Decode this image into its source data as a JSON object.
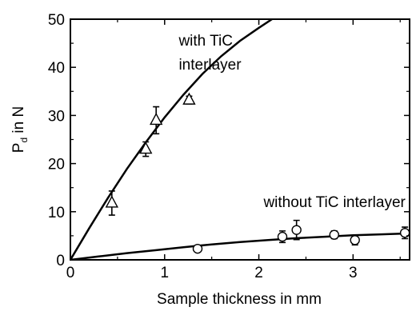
{
  "chart_data": {
    "type": "scatter",
    "xlabel": "Sample thickness in mm",
    "ylabel": "P",
    "ylabel_sub": "d",
    "ylabel_suffix": " in N",
    "xlim": [
      0,
      3.6
    ],
    "ylim": [
      0,
      50
    ],
    "xticks": [
      0,
      1,
      2,
      3
    ],
    "yticks": [
      0,
      10,
      20,
      30,
      40,
      50
    ],
    "grid": false,
    "annotations": [
      {
        "text": "with TiC",
        "x": 1.15,
        "y": 44.5
      },
      {
        "text": "interlayer",
        "x": 1.15,
        "y": 39.5
      },
      {
        "text": "without TiC interlayer",
        "x": 2.05,
        "y": 11.0
      }
    ],
    "series": [
      {
        "marker": "triangle",
        "points": [
          {
            "x": 0.44,
            "y": 11.8,
            "err": 2.5
          },
          {
            "x": 0.8,
            "y": 23.0,
            "err": 1.5
          },
          {
            "x": 0.91,
            "y": 29.0,
            "err": 2.8
          },
          {
            "x": 1.26,
            "y": 33.2,
            "err": 0.8
          }
        ],
        "fit": [
          [
            0,
            0
          ],
          [
            0.2,
            6.6
          ],
          [
            0.4,
            12.9
          ],
          [
            0.6,
            18.9
          ],
          [
            0.8,
            24.4
          ],
          [
            1.0,
            29.6
          ],
          [
            1.2,
            34.3
          ],
          [
            1.4,
            38.6
          ],
          [
            1.6,
            42.3
          ],
          [
            1.8,
            45.5
          ],
          [
            2.0,
            48.2
          ],
          [
            2.14,
            50.0
          ]
        ]
      },
      {
        "marker": "circle",
        "points": [
          {
            "x": 1.35,
            "y": 2.3,
            "err": 0.5
          },
          {
            "x": 2.25,
            "y": 4.8,
            "err": 1.2
          },
          {
            "x": 2.4,
            "y": 6.2,
            "err": 2.0
          },
          {
            "x": 2.8,
            "y": 5.2,
            "err": 0.8
          },
          {
            "x": 3.02,
            "y": 4.1,
            "err": 1.0
          },
          {
            "x": 3.55,
            "y": 5.6,
            "err": 1.2
          }
        ],
        "fit": [
          [
            0,
            0
          ],
          [
            0.3,
            0.7
          ],
          [
            0.6,
            1.4
          ],
          [
            0.9,
            2.0
          ],
          [
            1.2,
            2.6
          ],
          [
            1.5,
            3.2
          ],
          [
            1.8,
            3.7
          ],
          [
            2.1,
            4.1
          ],
          [
            2.4,
            4.5
          ],
          [
            2.7,
            4.8
          ],
          [
            3.0,
            5.1
          ],
          [
            3.3,
            5.3
          ],
          [
            3.6,
            5.5
          ]
        ]
      }
    ]
  }
}
